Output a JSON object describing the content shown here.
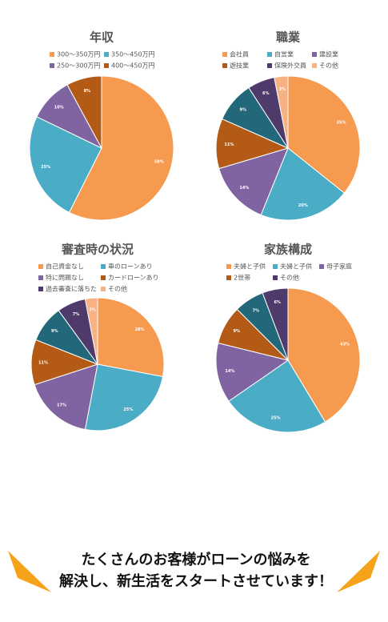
{
  "chart_data": [
    {
      "type": "pie",
      "title": "年収",
      "categories": [
        "300〜350万円",
        "350〜450万円",
        "250〜300万円",
        "400〜450万円"
      ],
      "values": [
        58,
        25,
        10,
        8
      ],
      "value_labels": [
        "58%",
        "25%",
        "10%",
        "8%"
      ],
      "colors": [
        "#f59a4f",
        "#4bacc6",
        "#8064a2",
        "#b35a16"
      ]
    },
    {
      "type": "pie",
      "title": "職業",
      "categories": [
        "会社員",
        "自営業",
        "建設業",
        "遊技業",
        null,
        "保険外交員",
        "その他"
      ],
      "values": [
        35,
        20,
        14,
        11,
        9,
        6,
        3
      ],
      "value_labels": [
        "35%",
        "20%",
        "14%",
        "11%",
        "9%",
        "6%",
        "3%"
      ],
      "colors": [
        "#f59a4f",
        "#4bacc6",
        "#8064a2",
        "#b35a16",
        "#23687a",
        "#4f3b6b",
        "#f6b184"
      ]
    },
    {
      "type": "pie",
      "title": "審査時の状況",
      "categories": [
        "自己資金なし",
        "車のローンあり",
        "特に問題なし",
        "カードローンあり",
        null,
        "過去審査に落ちた",
        "その他"
      ],
      "values": [
        28,
        25,
        17,
        11,
        9,
        7,
        3
      ],
      "value_labels": [
        "28%",
        "25%",
        "17%",
        "11%",
        "9%",
        "7%",
        "3%"
      ],
      "colors": [
        "#f59a4f",
        "#4bacc6",
        "#8064a2",
        "#b35a16",
        "#23687a",
        "#4f3b6b",
        "#f6b184"
      ]
    },
    {
      "type": "pie",
      "title": "家族構成",
      "categories": [
        "夫婦と子供",
        "夫婦と子供",
        "母子家庭",
        "2世帯",
        null,
        "その他"
      ],
      "values": [
        43,
        25,
        14,
        9,
        7,
        6
      ],
      "value_labels": [
        "43%",
        "25%",
        "14%",
        "9%",
        "7%",
        "6%"
      ],
      "colors": [
        "#f59a4f",
        "#4bacc6",
        "#8064a2",
        "#b35a16",
        "#23687a",
        "#4f3b6b"
      ]
    }
  ],
  "footer": {
    "lines": [
      "たくさんのお客様がローンの悩みを",
      "解決し、新生活をスタートさせています！"
    ]
  }
}
